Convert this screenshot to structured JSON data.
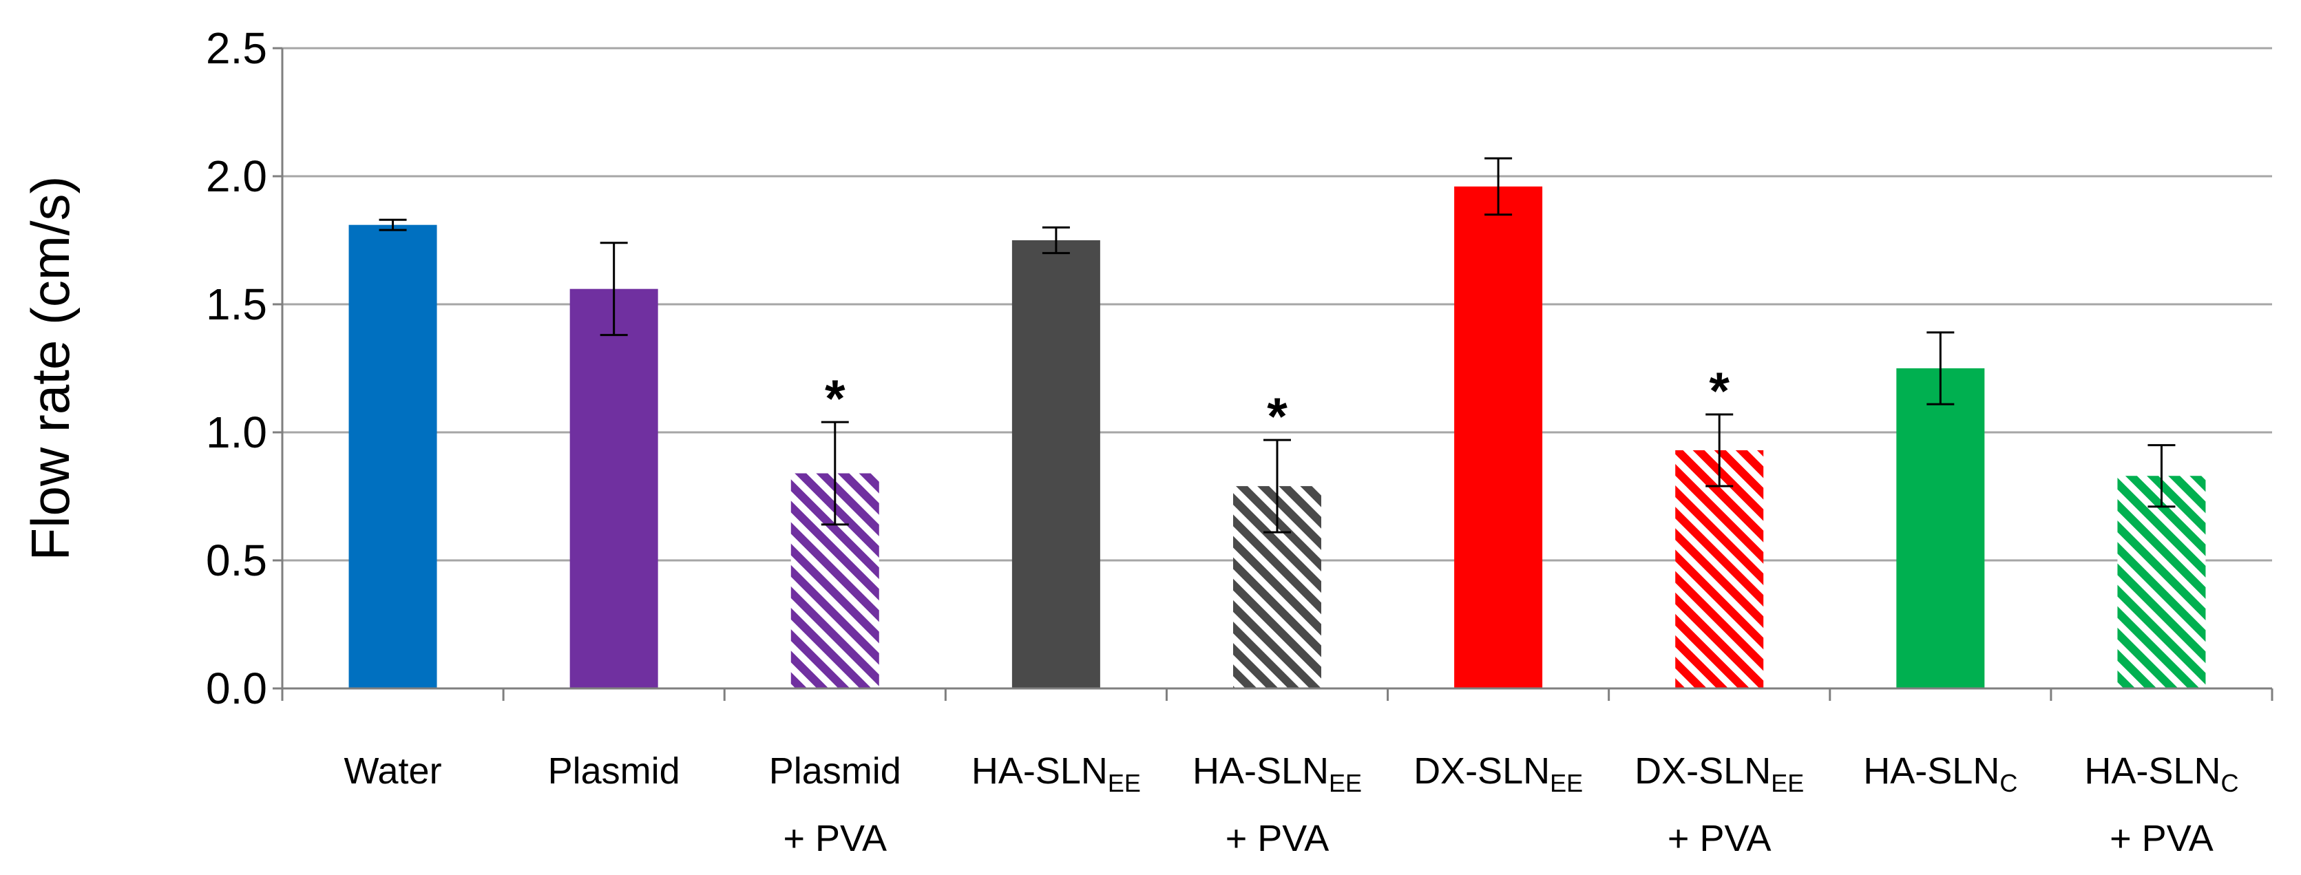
{
  "chart_data": {
    "type": "bar",
    "title": "",
    "xlabel": "",
    "ylabel": "Flow rate (cm/s)",
    "ylim": [
      0,
      2.5
    ],
    "yticks": [
      "0.0",
      "0.5",
      "1.0",
      "1.5",
      "2.0",
      "2.5"
    ],
    "grid": true,
    "categories": [
      {
        "main": "Water",
        "sub": "",
        "line2": ""
      },
      {
        "main": "Plasmid",
        "sub": "",
        "line2": ""
      },
      {
        "main": "Plasmid",
        "sub": "",
        "line2": "+ PVA"
      },
      {
        "main": "HA-SLN",
        "sub": "EE",
        "line2": ""
      },
      {
        "main": "HA-SLN",
        "sub": "EE",
        "line2": "+ PVA"
      },
      {
        "main": "DX-SLN",
        "sub": "EE",
        "line2": ""
      },
      {
        "main": "DX-SLN",
        "sub": "EE",
        "line2": "+ PVA"
      },
      {
        "main": "HA-SLN",
        "sub": "C",
        "line2": ""
      },
      {
        "main": "HA-SLN",
        "sub": "C",
        "line2": "+ PVA"
      }
    ],
    "values": [
      1.81,
      1.56,
      0.84,
      1.75,
      0.79,
      1.96,
      0.93,
      1.25,
      0.83
    ],
    "errors": [
      0.02,
      0.18,
      0.2,
      0.05,
      0.18,
      0.11,
      0.14,
      0.14,
      0.12
    ],
    "colors": [
      "#0070c0",
      "#7030a0",
      "#7030a0",
      "#4a4a4a",
      "#4a4a4a",
      "#ff0000",
      "#ff0000",
      "#00b050",
      "#00b050"
    ],
    "hatched": [
      false,
      false,
      true,
      false,
      true,
      false,
      true,
      false,
      true
    ],
    "significant": [
      false,
      false,
      true,
      false,
      true,
      false,
      true,
      false,
      false
    ],
    "significance_marker": "*"
  }
}
